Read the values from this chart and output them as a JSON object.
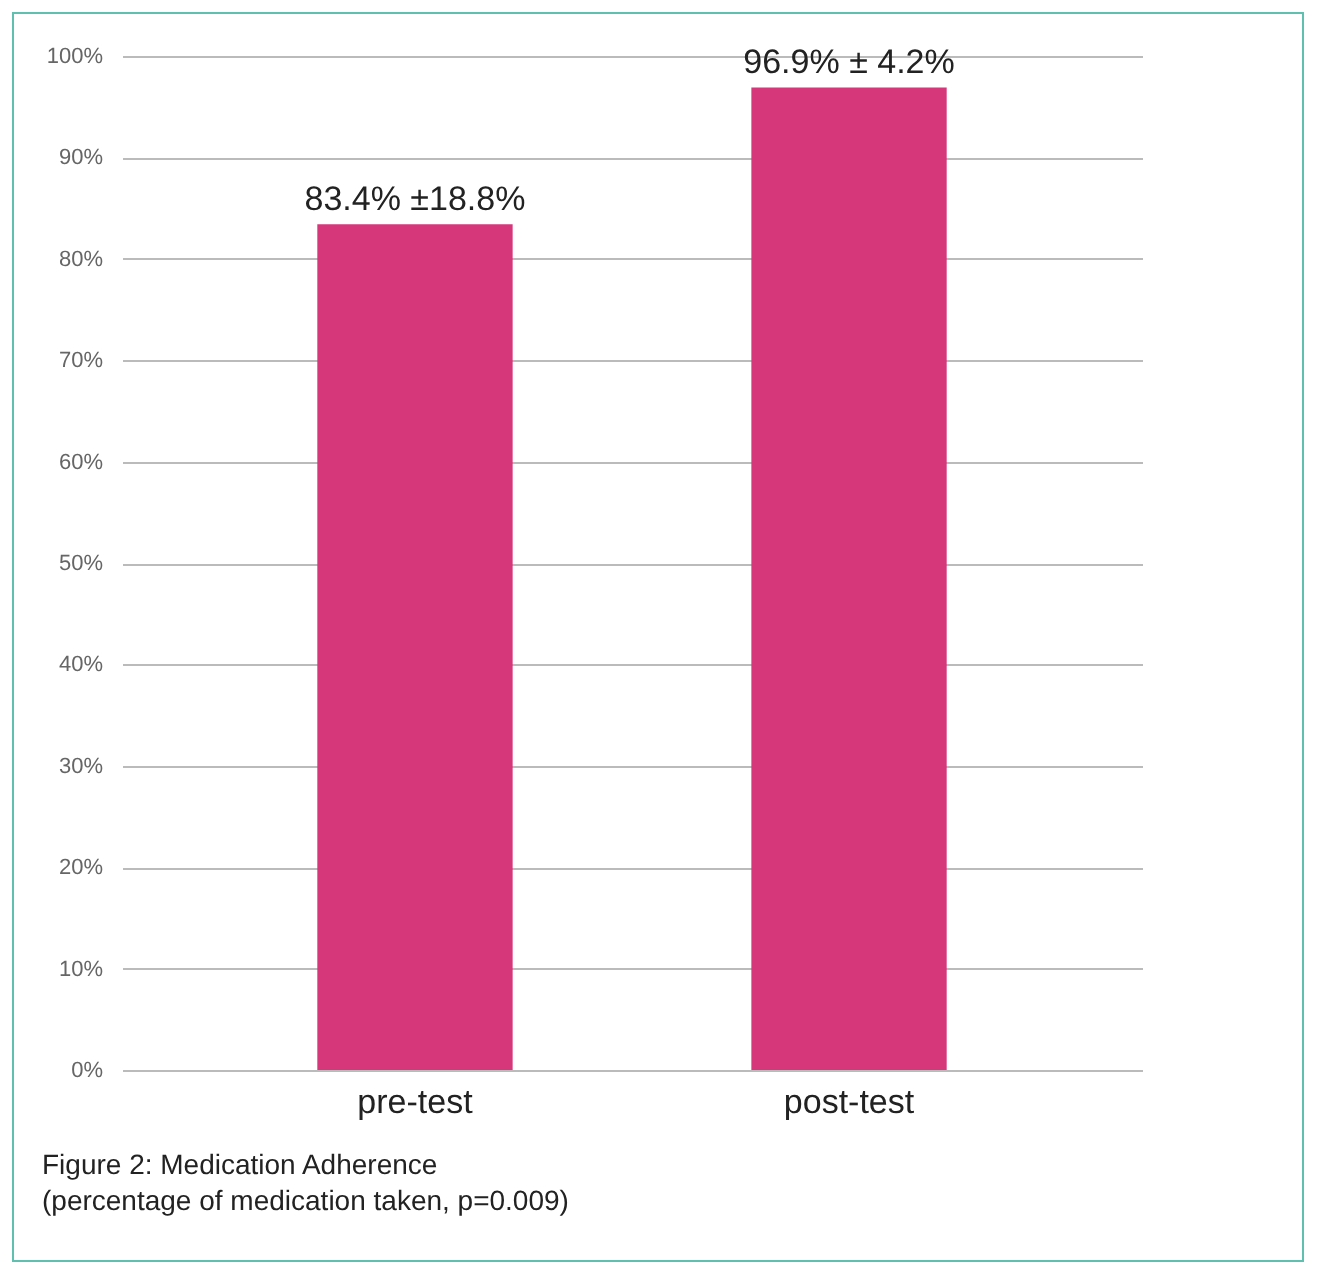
{
  "chart_data": {
    "type": "bar",
    "categories": [
      "pre-test",
      "post-test"
    ],
    "values": [
      83.4,
      96.9
    ],
    "color": "#d6367a",
    "value_labels": [
      "83.4% ±18.8%",
      "96.9% ± 4.2%"
    ],
    "ylim": [
      0,
      100
    ],
    "yticks": [
      {
        "value": 0,
        "label": "0%"
      },
      {
        "value": 10,
        "label": "10%"
      },
      {
        "value": 20,
        "label": "20%"
      },
      {
        "value": 30,
        "label": "30%"
      },
      {
        "value": 40,
        "label": "40%"
      },
      {
        "value": 50,
        "label": "50%"
      },
      {
        "value": 60,
        "label": "60%"
      },
      {
        "value": 70,
        "label": "70%"
      },
      {
        "value": 80,
        "label": "80%"
      },
      {
        "value": 90,
        "label": "90%"
      },
      {
        "value": 100,
        "label": "100%"
      }
    ],
    "grid": "y",
    "annotations": [
      "Figure 2: Medication Adherence",
      "(percentage of medication taken, p=0.009)"
    ]
  }
}
